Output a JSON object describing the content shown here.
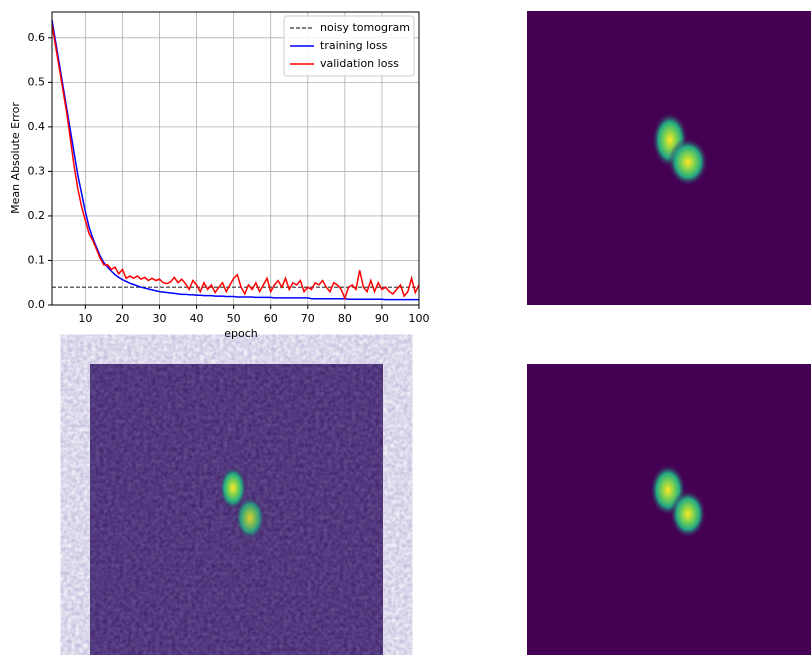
{
  "chart_data": {
    "type": "line",
    "xlabel": "epoch",
    "ylabel": "Mean Absolute Error",
    "xlim": [
      1,
      100
    ],
    "ylim": [
      0,
      0.658
    ],
    "xticks": [
      10,
      20,
      30,
      40,
      50,
      60,
      70,
      80,
      90,
      100
    ],
    "yticks": [
      {
        "value": 0,
        "label": "0.0"
      },
      0.1,
      0.2,
      0.3,
      0.4,
      0.5,
      0.6
    ],
    "grid": true,
    "legend": "upper right",
    "reference_lines": [
      {
        "name": "noisy tomogram",
        "value": 0.04,
        "color": "#333333"
      }
    ],
    "x": [
      1,
      2,
      3,
      4,
      5,
      6,
      7,
      8,
      9,
      10,
      11,
      12,
      13,
      14,
      15,
      16,
      17,
      18,
      19,
      20,
      21,
      22,
      23,
      24,
      25,
      26,
      27,
      28,
      29,
      30,
      31,
      32,
      33,
      34,
      35,
      36,
      37,
      38,
      39,
      40,
      41,
      42,
      43,
      44,
      45,
      46,
      47,
      48,
      49,
      50,
      51,
      52,
      53,
      54,
      55,
      56,
      57,
      58,
      59,
      60,
      61,
      62,
      63,
      64,
      65,
      66,
      67,
      68,
      69,
      70,
      71,
      72,
      73,
      74,
      75,
      76,
      77,
      78,
      79,
      80,
      81,
      82,
      83,
      84,
      85,
      86,
      87,
      88,
      89,
      90,
      91,
      92,
      93,
      94,
      95,
      96,
      97,
      98,
      99,
      100
    ],
    "series": [
      {
        "name": "training loss",
        "color": "#0000ff",
        "values": [
          0.64,
          0.59,
          0.54,
          0.49,
          0.44,
          0.39,
          0.34,
          0.29,
          0.25,
          0.21,
          0.175,
          0.15,
          0.13,
          0.11,
          0.095,
          0.085,
          0.076,
          0.068,
          0.062,
          0.057,
          0.053,
          0.049,
          0.046,
          0.043,
          0.04,
          0.038,
          0.036,
          0.034,
          0.032,
          0.03,
          0.029,
          0.028,
          0.027,
          0.026,
          0.025,
          0.024,
          0.024,
          0.023,
          0.023,
          0.022,
          0.022,
          0.021,
          0.021,
          0.021,
          0.02,
          0.02,
          0.02,
          0.019,
          0.019,
          0.019,
          0.018,
          0.018,
          0.018,
          0.018,
          0.018,
          0.017,
          0.017,
          0.017,
          0.017,
          0.017,
          0.016,
          0.016,
          0.016,
          0.016,
          0.016,
          0.016,
          0.016,
          0.016,
          0.016,
          0.016,
          0.014,
          0.014,
          0.014,
          0.014,
          0.014,
          0.014,
          0.014,
          0.014,
          0.014,
          0.014,
          0.013,
          0.013,
          0.013,
          0.013,
          0.013,
          0.013,
          0.013,
          0.013,
          0.013,
          0.013,
          0.012,
          0.012,
          0.012,
          0.012,
          0.012,
          0.012,
          0.012,
          0.012,
          0.012,
          0.012
        ]
      },
      {
        "name": "validation loss",
        "color": "#ff0000",
        "values": [
          0.63,
          0.58,
          0.53,
          0.48,
          0.43,
          0.37,
          0.31,
          0.26,
          0.22,
          0.19,
          0.16,
          0.145,
          0.125,
          0.105,
          0.09,
          0.09,
          0.08,
          0.085,
          0.07,
          0.08,
          0.06,
          0.065,
          0.06,
          0.065,
          0.058,
          0.062,
          0.055,
          0.06,
          0.055,
          0.058,
          0.05,
          0.048,
          0.052,
          0.062,
          0.05,
          0.058,
          0.048,
          0.035,
          0.055,
          0.045,
          0.03,
          0.05,
          0.035,
          0.045,
          0.028,
          0.04,
          0.05,
          0.03,
          0.045,
          0.06,
          0.068,
          0.04,
          0.025,
          0.045,
          0.035,
          0.05,
          0.03,
          0.045,
          0.06,
          0.03,
          0.045,
          0.055,
          0.04,
          0.06,
          0.035,
          0.05,
          0.045,
          0.055,
          0.03,
          0.04,
          0.035,
          0.05,
          0.045,
          0.055,
          0.04,
          0.03,
          0.05,
          0.045,
          0.035,
          0.015,
          0.04,
          0.045,
          0.035,
          0.078,
          0.04,
          0.03,
          0.055,
          0.03,
          0.05,
          0.035,
          0.04,
          0.03,
          0.025,
          0.035,
          0.045,
          0.02,
          0.03,
          0.06,
          0.028,
          0.045
        ]
      }
    ]
  }
}
